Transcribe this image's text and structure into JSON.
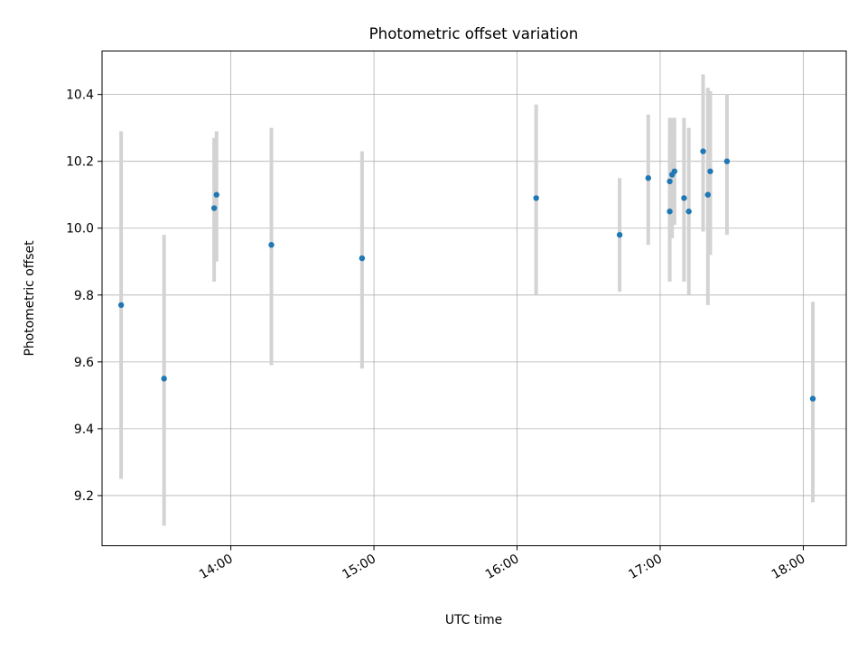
{
  "chart_data": {
    "type": "scatter",
    "title": "Photometric offset variation",
    "xlabel": "UTC time",
    "ylabel": "Photometric offset",
    "x_ticks": [
      "14:00",
      "15:00",
      "16:00",
      "17:00",
      "18:00"
    ],
    "y_ticks": [
      "9.2",
      "9.4",
      "9.6",
      "9.8",
      "10.0",
      "10.2",
      "10.4"
    ],
    "xlim": [
      "13:06",
      "18:18"
    ],
    "ylim": [
      9.05,
      10.53
    ],
    "grid": true,
    "marker_color": "#1f77b4",
    "errorbar_color": "#d3d3d3",
    "points": [
      {
        "x": "13:14",
        "y": 9.77,
        "yerr_low": 9.25,
        "yerr_high": 10.29
      },
      {
        "x": "13:32",
        "y": 9.55,
        "yerr_low": 9.11,
        "yerr_high": 9.98
      },
      {
        "x": "13:53",
        "y": 10.06,
        "yerr_low": 9.84,
        "yerr_high": 10.27
      },
      {
        "x": "13:54",
        "y": 10.1,
        "yerr_low": 9.9,
        "yerr_high": 10.29
      },
      {
        "x": "14:17",
        "y": 9.95,
        "yerr_low": 9.59,
        "yerr_high": 10.3
      },
      {
        "x": "14:55",
        "y": 9.91,
        "yerr_low": 9.58,
        "yerr_high": 10.23
      },
      {
        "x": "16:08",
        "y": 10.09,
        "yerr_low": 9.8,
        "yerr_high": 10.37
      },
      {
        "x": "16:43",
        "y": 9.98,
        "yerr_low": 9.81,
        "yerr_high": 10.15
      },
      {
        "x": "16:55",
        "y": 10.15,
        "yerr_low": 9.95,
        "yerr_high": 10.34
      },
      {
        "x": "17:04",
        "y": 10.05,
        "yerr_low": 9.84,
        "yerr_high": 10.26
      },
      {
        "x": "17:04",
        "y": 10.14,
        "yerr_low": 9.94,
        "yerr_high": 10.33
      },
      {
        "x": "17:05",
        "y": 10.16,
        "yerr_low": 9.97,
        "yerr_high": 10.33
      },
      {
        "x": "17:06",
        "y": 10.17,
        "yerr_low": 10.01,
        "yerr_high": 10.33
      },
      {
        "x": "17:10",
        "y": 10.09,
        "yerr_low": 9.84,
        "yerr_high": 10.33
      },
      {
        "x": "17:12",
        "y": 10.05,
        "yerr_low": 9.8,
        "yerr_high": 10.3
      },
      {
        "x": "17:18",
        "y": 10.23,
        "yerr_low": 9.99,
        "yerr_high": 10.46
      },
      {
        "x": "17:20",
        "y": 10.1,
        "yerr_low": 9.77,
        "yerr_high": 10.42
      },
      {
        "x": "17:21",
        "y": 10.17,
        "yerr_low": 9.92,
        "yerr_high": 10.41
      },
      {
        "x": "17:28",
        "y": 10.2,
        "yerr_low": 9.98,
        "yerr_high": 10.4
      },
      {
        "x": "18:04",
        "y": 9.49,
        "yerr_low": 9.18,
        "yerr_high": 9.78
      }
    ]
  }
}
